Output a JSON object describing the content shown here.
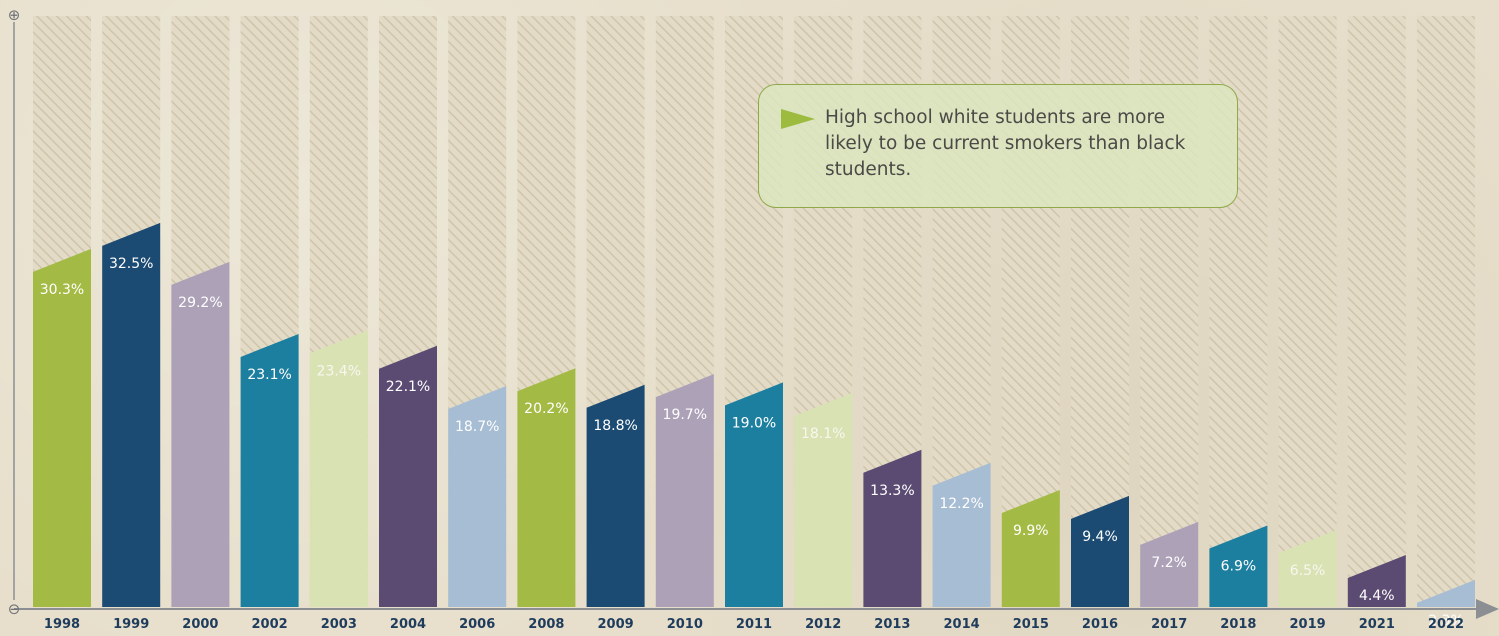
{
  "chart_data": {
    "type": "bar",
    "categories": [
      "1998",
      "1999",
      "2000",
      "2002",
      "2003",
      "2004",
      "2006",
      "2008",
      "2009",
      "2010",
      "2011",
      "2012",
      "2013",
      "2014",
      "2015",
      "2016",
      "2017",
      "2018",
      "2019",
      "2021",
      "2022"
    ],
    "values": [
      30.3,
      32.5,
      29.2,
      23.1,
      23.4,
      22.1,
      18.7,
      20.2,
      18.8,
      19.7,
      19.0,
      18.1,
      13.3,
      12.2,
      9.9,
      9.4,
      7.2,
      6.9,
      6.5,
      4.4,
      2.3
    ],
    "labels": [
      "30.3%",
      "32.5%",
      "29.2%",
      "23.1%",
      "23.4%",
      "22.1%",
      "18.7%",
      "20.2%",
      "18.8%",
      "19.7%",
      "19.0%",
      "18.1%",
      "13.3%",
      "12.2%",
      "9.9%",
      "9.4%",
      "7.2%",
      "6.9%",
      "6.5%",
      "4.4%",
      "2.3%"
    ],
    "colors": [
      "#a3bb45",
      "#1b4a72",
      "#ada1b8",
      "#1d7fa0",
      "#d9e2b3",
      "#5b4b73",
      "#a6bdd4"
    ],
    "ylim": [
      0,
      50
    ],
    "axis_markers": {
      "top": "⊕",
      "bottom": "⊖"
    },
    "grid": false,
    "title": "",
    "xlabel": "",
    "ylabel": ""
  },
  "callout": {
    "text": "High school white students are more likely to be current smokers than black students."
  }
}
